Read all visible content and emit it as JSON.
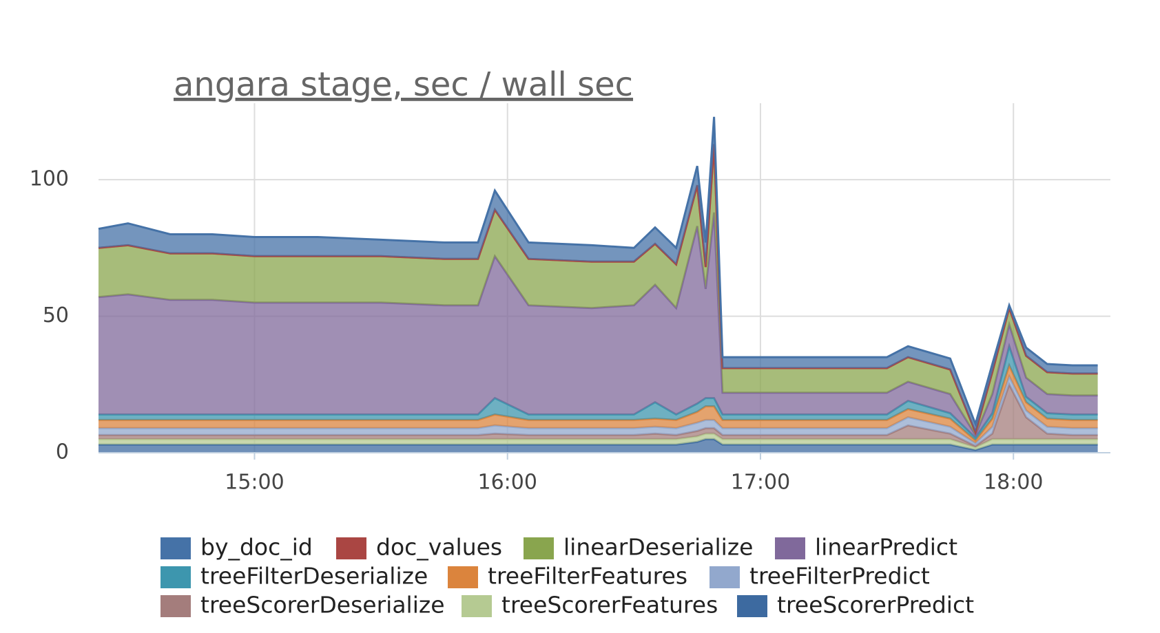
{
  "chart_data": {
    "type": "stacked_area",
    "title": "angara stage, sec / wall sec",
    "x": [
      "14:23",
      "14:30",
      "14:40",
      "14:50",
      "15:00",
      "15:15",
      "15:30",
      "15:45",
      "15:53",
      "15:57",
      "16:05",
      "16:20",
      "16:30",
      "16:35",
      "16:40",
      "16:45",
      "16:47",
      "16:49",
      "16:51",
      "16:55",
      "17:05",
      "17:20",
      "17:30",
      "17:35",
      "17:45",
      "17:51",
      "17:55",
      "17:59",
      "18:03",
      "18:08",
      "18:14",
      "18:20"
    ],
    "xlim": [
      "14:23",
      "18:23"
    ],
    "xticks": [
      "15:00",
      "16:00",
      "17:00",
      "18:00"
    ],
    "ylim": [
      0,
      128
    ],
    "yticks": [
      0,
      50,
      100
    ],
    "grid": true,
    "series": [
      {
        "name": "by_doc_id",
        "color": "#4572a7",
        "values": [
          7,
          8,
          7,
          7,
          7,
          7,
          6,
          6,
          6,
          7,
          6,
          6,
          5,
          6,
          6,
          7,
          9,
          10,
          4,
          4,
          4,
          4,
          4,
          4,
          4,
          3,
          3,
          1,
          3,
          3,
          3,
          3
        ]
      },
      {
        "name": "doc_values",
        "color": "#aa4643",
        "values": [
          0,
          0,
          0,
          0,
          0,
          0,
          0,
          0,
          0,
          0,
          0,
          0,
          0,
          0,
          0,
          0,
          0,
          0,
          0,
          0,
          0,
          0,
          0,
          0,
          0,
          0,
          0,
          0,
          0,
          0,
          0,
          0
        ]
      },
      {
        "name": "linearDeserialize",
        "color": "#89a54e",
        "values": [
          18,
          18,
          17,
          17,
          17,
          17,
          17,
          17,
          17,
          17,
          17,
          17,
          16,
          15,
          16,
          15,
          8,
          25,
          9,
          9,
          9,
          9,
          9,
          9,
          9,
          1,
          8,
          6,
          8,
          8,
          8,
          8
        ]
      },
      {
        "name": "linearPredict",
        "color": "#80699b",
        "values": [
          43,
          44,
          42,
          42,
          41,
          41,
          41,
          40,
          40,
          52,
          40,
          39,
          40,
          43,
          39,
          65,
          40,
          68,
          8,
          8,
          8,
          8,
          8,
          7,
          7,
          1,
          7,
          8,
          7,
          7,
          7,
          7
        ]
      },
      {
        "name": "treeFilterDeserialize",
        "color": "#3d96ae",
        "values": [
          2,
          2,
          2,
          2,
          2,
          2,
          2,
          2,
          2,
          6,
          2,
          2,
          2,
          6,
          2,
          3,
          3,
          3,
          2,
          2,
          2,
          2,
          2,
          3,
          2,
          1,
          2,
          7,
          2,
          2,
          2,
          2
        ]
      },
      {
        "name": "treeFilterFeatures",
        "color": "#db843d",
        "values": [
          3,
          3,
          3,
          3,
          3,
          3,
          3,
          3,
          3,
          4,
          3,
          3,
          3,
          3,
          3,
          4,
          5,
          5,
          3,
          3,
          3,
          3,
          3,
          3,
          3,
          1,
          3,
          4,
          3,
          3,
          3,
          3
        ]
      },
      {
        "name": "treeFilterPredict",
        "color": "#92a8cd",
        "values": [
          2.5,
          2.5,
          2.5,
          2.5,
          2.5,
          2.5,
          2.5,
          2.5,
          2.5,
          3,
          2.5,
          2.5,
          2.5,
          2.5,
          2.5,
          3,
          3,
          3,
          2.5,
          2.5,
          2.5,
          2.5,
          2.5,
          3,
          2.5,
          1,
          2.5,
          3,
          2.5,
          2.5,
          2.5,
          2.5
        ]
      },
      {
        "name": "treeScorerDeserialize",
        "color": "#a47d7c",
        "values": [
          1.5,
          1.5,
          1.5,
          1.5,
          1.5,
          1.5,
          1.5,
          1.5,
          1.5,
          2,
          1.5,
          1.5,
          1.5,
          2,
          1.5,
          2,
          2,
          2,
          1.5,
          1.5,
          1.5,
          1.5,
          1.5,
          5,
          2,
          0.5,
          2,
          20,
          8,
          2,
          1.5,
          1.5
        ]
      },
      {
        "name": "treeScorerFeatures",
        "color": "#b5ca92",
        "values": [
          2,
          2,
          2,
          2,
          2,
          2,
          2,
          2,
          2,
          2,
          2,
          2,
          2,
          2,
          2,
          2,
          2,
          2,
          2,
          2,
          2,
          2,
          2,
          2,
          2,
          1,
          2,
          2,
          2,
          2,
          2,
          2
        ]
      },
      {
        "name": "treeScorerPredict",
        "color": "#3d6aa0",
        "values": [
          3,
          3,
          3,
          3,
          3,
          3,
          3,
          3,
          3,
          3,
          3,
          3,
          3,
          3,
          3,
          4,
          5,
          5,
          3,
          3,
          3,
          3,
          3,
          3,
          3,
          1,
          3,
          3,
          3,
          3,
          3,
          3
        ]
      }
    ]
  }
}
